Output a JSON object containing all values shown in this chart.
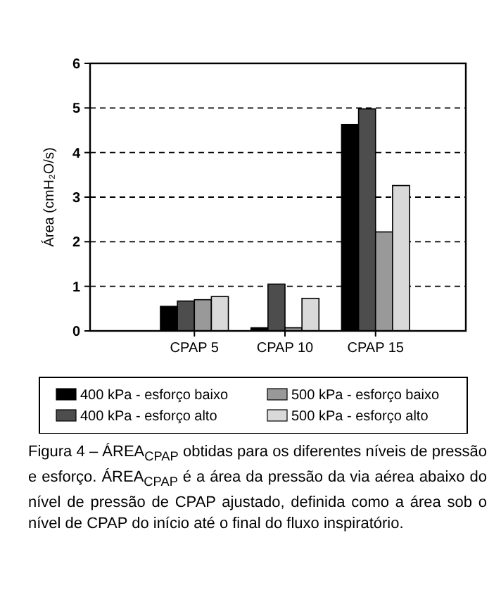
{
  "chart_data": {
    "type": "bar",
    "ylabel": "Área (cmH₂O/s)",
    "categories": [
      "CPAP 5",
      "CPAP 10",
      "CPAP 15"
    ],
    "series": [
      {
        "name": "400 kPa - esforço baixo",
        "color": "#000000",
        "values": [
          0.55,
          0.07,
          4.63
        ]
      },
      {
        "name": "400 kPa - esforço alto",
        "color": "#4d4d4d",
        "values": [
          0.67,
          1.05,
          4.98
        ]
      },
      {
        "name": "500 kPa - esforço baixo",
        "color": "#999999",
        "values": [
          0.7,
          0.07,
          2.22
        ]
      },
      {
        "name": "500 kPa - esforço alto",
        "color": "#d9d9d9",
        "values": [
          0.77,
          0.73,
          3.26
        ]
      }
    ],
    "ylim": [
      0,
      6
    ],
    "yticks": [
      0,
      1,
      2,
      3,
      4,
      5,
      6
    ],
    "grid": "y",
    "legend": "bottom",
    "annotations": [
      "Figura 4 – ÁREA$_{CPAP}$ obtidas para os diferentes níveis de pressão e esforço. ÁREA$_{CPAP}$ é a área da pressão da via aérea abaixo do nível de pressão de CPAP ajustado, definida como a área sob o nível de CPAP do início até o final do fluxo inspiratório."
    ]
  }
}
